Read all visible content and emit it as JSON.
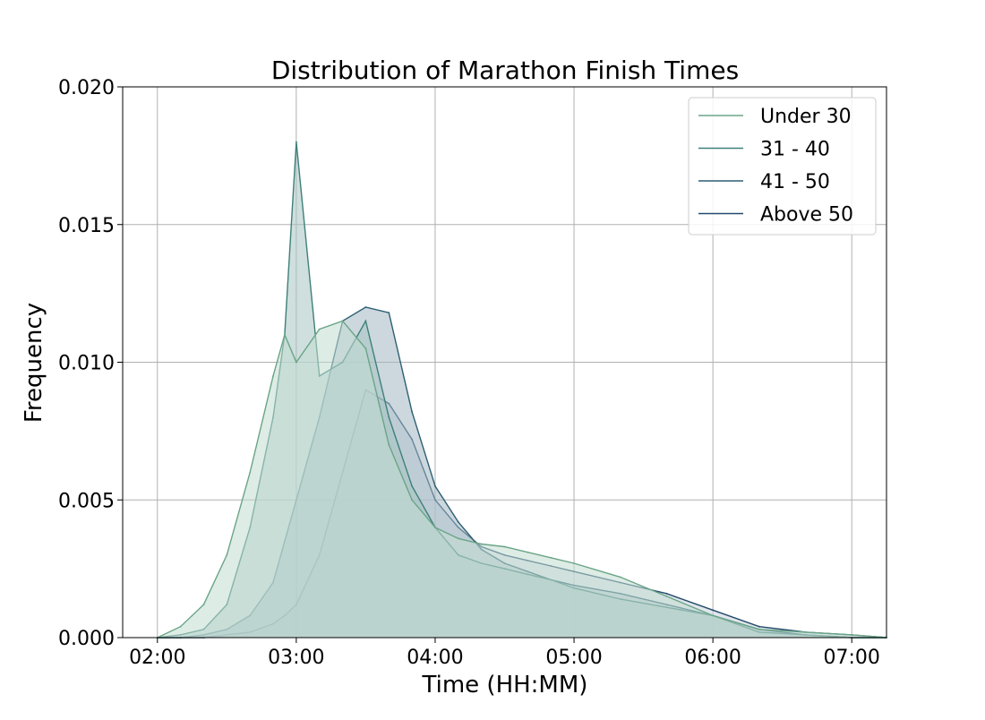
{
  "chart_data": {
    "type": "area",
    "title": "Distribution of Marathon Finish Times",
    "xlabel": "Time (HH:MM)",
    "ylabel": "Frequency",
    "xlim": [
      "01:45",
      "07:15"
    ],
    "ylim": [
      0,
      0.02
    ],
    "x_ticks": [
      "02:00",
      "03:00",
      "04:00",
      "05:00",
      "06:00",
      "07:00"
    ],
    "y_ticks": [
      "0.000",
      "0.005",
      "0.010",
      "0.015",
      "0.020"
    ],
    "grid": true,
    "legend_position": "top-right",
    "x": [
      "02:00",
      "02:10",
      "02:20",
      "02:30",
      "02:40",
      "02:50",
      "02:55",
      "03:00",
      "03:10",
      "03:20",
      "03:30",
      "03:40",
      "03:50",
      "04:00",
      "04:10",
      "04:20",
      "04:30",
      "04:40",
      "04:50",
      "05:00",
      "05:20",
      "05:40",
      "06:00",
      "06:20",
      "06:40",
      "07:00",
      "07:15"
    ],
    "series": [
      {
        "name": "Under 30",
        "color": "#6aa587",
        "fill": "#c3ddd2",
        "values": [
          0.0,
          0.0004,
          0.0012,
          0.003,
          0.006,
          0.0095,
          0.011,
          0.01,
          0.0112,
          0.0115,
          0.0105,
          0.007,
          0.005,
          0.004,
          0.0036,
          0.0034,
          0.0033,
          0.0031,
          0.0029,
          0.0027,
          0.0022,
          0.0015,
          0.0008,
          0.0003,
          0.0002,
          0.0001,
          0.0
        ]
      },
      {
        "name": "31 - 40",
        "color": "#3e8078",
        "fill": "#a6c4c3",
        "values": [
          0.0,
          0.0001,
          0.0003,
          0.0012,
          0.004,
          0.008,
          0.011,
          0.018,
          0.0095,
          0.01,
          0.0115,
          0.008,
          0.0055,
          0.004,
          0.003,
          0.0027,
          0.0025,
          0.0023,
          0.0021,
          0.0018,
          0.0014,
          0.0011,
          0.0008,
          0.0002,
          0.0001,
          0.0,
          0.0
        ]
      },
      {
        "name": "41 - 50",
        "color": "#2d5f73",
        "fill": "#a2b8c2",
        "values": [
          0.0,
          0.0,
          0.0001,
          0.0003,
          0.0008,
          0.002,
          0.0035,
          0.005,
          0.008,
          0.0115,
          0.012,
          0.0118,
          0.0082,
          0.0055,
          0.0042,
          0.0032,
          0.0027,
          0.0024,
          0.0021,
          0.0019,
          0.0016,
          0.0012,
          0.0008,
          0.0003,
          0.0001,
          0.0,
          0.0
        ]
      },
      {
        "name": "Above 50",
        "color": "#234a6b",
        "fill": "#c7d2dc",
        "values": [
          0.0,
          0.0,
          0.0,
          0.0001,
          0.0002,
          0.0005,
          0.0008,
          0.0012,
          0.003,
          0.006,
          0.009,
          0.0085,
          0.0072,
          0.005,
          0.004,
          0.0033,
          0.003,
          0.0028,
          0.0026,
          0.0024,
          0.002,
          0.0016,
          0.001,
          0.0004,
          0.0002,
          0.0001,
          0.0
        ]
      }
    ]
  }
}
